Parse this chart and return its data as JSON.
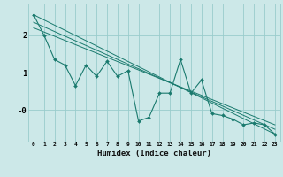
{
  "xlabel": "Humidex (Indice chaleur)",
  "bg_color": "#cce8e8",
  "grid_color": "#99cccc",
  "line_color": "#1a7a6e",
  "x_data": [
    0,
    1,
    2,
    3,
    4,
    5,
    6,
    7,
    8,
    9,
    10,
    11,
    12,
    13,
    14,
    15,
    16,
    17,
    18,
    19,
    20,
    21,
    22,
    23
  ],
  "scatter_y": [
    2.55,
    2.0,
    1.35,
    1.2,
    0.65,
    1.2,
    0.9,
    1.3,
    0.9,
    1.05,
    -0.3,
    -0.2,
    0.45,
    0.45,
    1.35,
    0.45,
    0.8,
    -0.1,
    -0.15,
    -0.25,
    -0.4,
    -0.35,
    -0.4,
    -0.65
  ],
  "line1_y": [
    2.55,
    -0.65
  ],
  "line2_y": [
    2.35,
    -0.52
  ],
  "line3_y": [
    2.2,
    -0.4
  ],
  "xlim": [
    -0.5,
    23.5
  ],
  "ylim": [
    -0.85,
    2.85
  ],
  "yticks": [
    0.0,
    1.0,
    2.0
  ],
  "ytick_labels": [
    "-0",
    "1",
    "2"
  ],
  "xticks": [
    0,
    1,
    2,
    3,
    4,
    5,
    6,
    7,
    8,
    9,
    10,
    11,
    12,
    13,
    14,
    15,
    16,
    17,
    18,
    19,
    20,
    21,
    22,
    23
  ]
}
